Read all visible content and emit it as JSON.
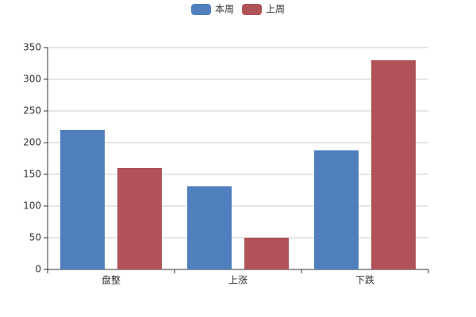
{
  "chart_data": {
    "type": "bar",
    "categories": [
      "盘整",
      "上涨",
      "下跌"
    ],
    "series": [
      {
        "name": "本周",
        "color": "#4f7fbc",
        "values": [
          220,
          131,
          188
        ]
      },
      {
        "name": "上周",
        "color": "#b05359",
        "values": [
          160,
          50,
          330
        ]
      }
    ],
    "ylim": [
      0,
      350
    ],
    "yticks": [
      0,
      50,
      100,
      150,
      200,
      250,
      300,
      350
    ],
    "grid": true
  }
}
